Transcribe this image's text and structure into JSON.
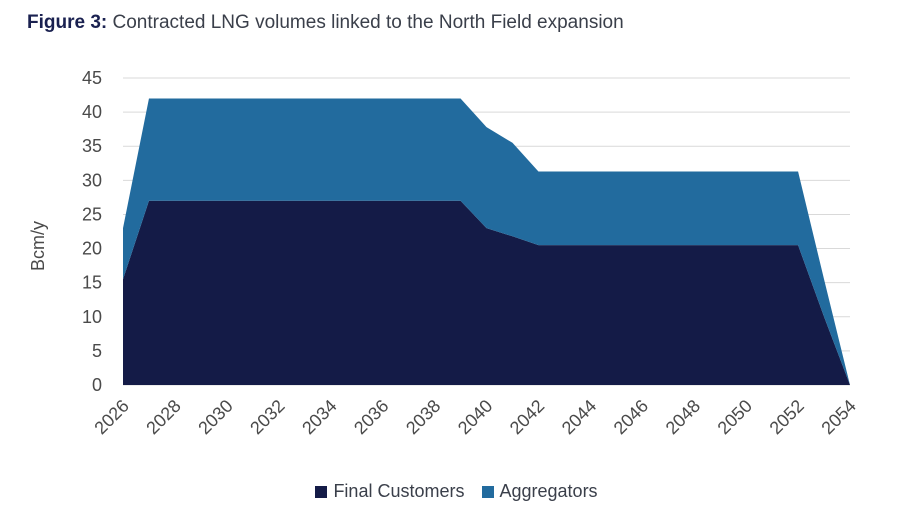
{
  "figure": {
    "label": "Figure 3:",
    "title": "Contracted LNG volumes linked to the North Field expansion"
  },
  "colors": {
    "final_customers": "#141b47",
    "aggregators": "#226b9e",
    "grid": "#d9d9d9"
  },
  "chart_data": {
    "type": "area",
    "stacked": true,
    "title": "Contracted LNG volumes linked to the North Field expansion",
    "xlabel": "",
    "ylabel": "Bcm/y",
    "ylim": [
      0,
      45
    ],
    "yticks": [
      0,
      5,
      10,
      15,
      20,
      25,
      30,
      35,
      40,
      45
    ],
    "xlim": [
      2026,
      2054
    ],
    "xticks": [
      2026,
      2028,
      2030,
      2032,
      2034,
      2036,
      2038,
      2040,
      2042,
      2044,
      2046,
      2048,
      2050,
      2052,
      2054
    ],
    "x": [
      2026,
      2027,
      2028,
      2029,
      2030,
      2031,
      2032,
      2033,
      2034,
      2035,
      2036,
      2037,
      2038,
      2039,
      2040,
      2041,
      2042,
      2043,
      2044,
      2045,
      2046,
      2047,
      2048,
      2049,
      2050,
      2051,
      2052,
      2053,
      2054
    ],
    "series": [
      {
        "name": "Final Customers",
        "values": [
          15.5,
          27,
          27,
          27,
          27,
          27,
          27,
          27,
          27,
          27,
          27,
          27,
          27,
          27,
          23,
          21.8,
          20.5,
          20.5,
          20.5,
          20.5,
          20.5,
          20.5,
          20.5,
          20.5,
          20.5,
          20.5,
          20.5,
          10,
          0
        ]
      },
      {
        "name": "Aggregators",
        "values": [
          7.5,
          15,
          15,
          15,
          15,
          15,
          15,
          15,
          15,
          15,
          15,
          15,
          15,
          15,
          14.8,
          13.7,
          10.8,
          10.8,
          10.8,
          10.8,
          10.8,
          10.8,
          10.8,
          10.8,
          10.8,
          10.8,
          10.8,
          5.5,
          0
        ]
      }
    ],
    "legend": [
      "Final Customers",
      "Aggregators"
    ],
    "legend_position": "bottom",
    "grid": true
  }
}
